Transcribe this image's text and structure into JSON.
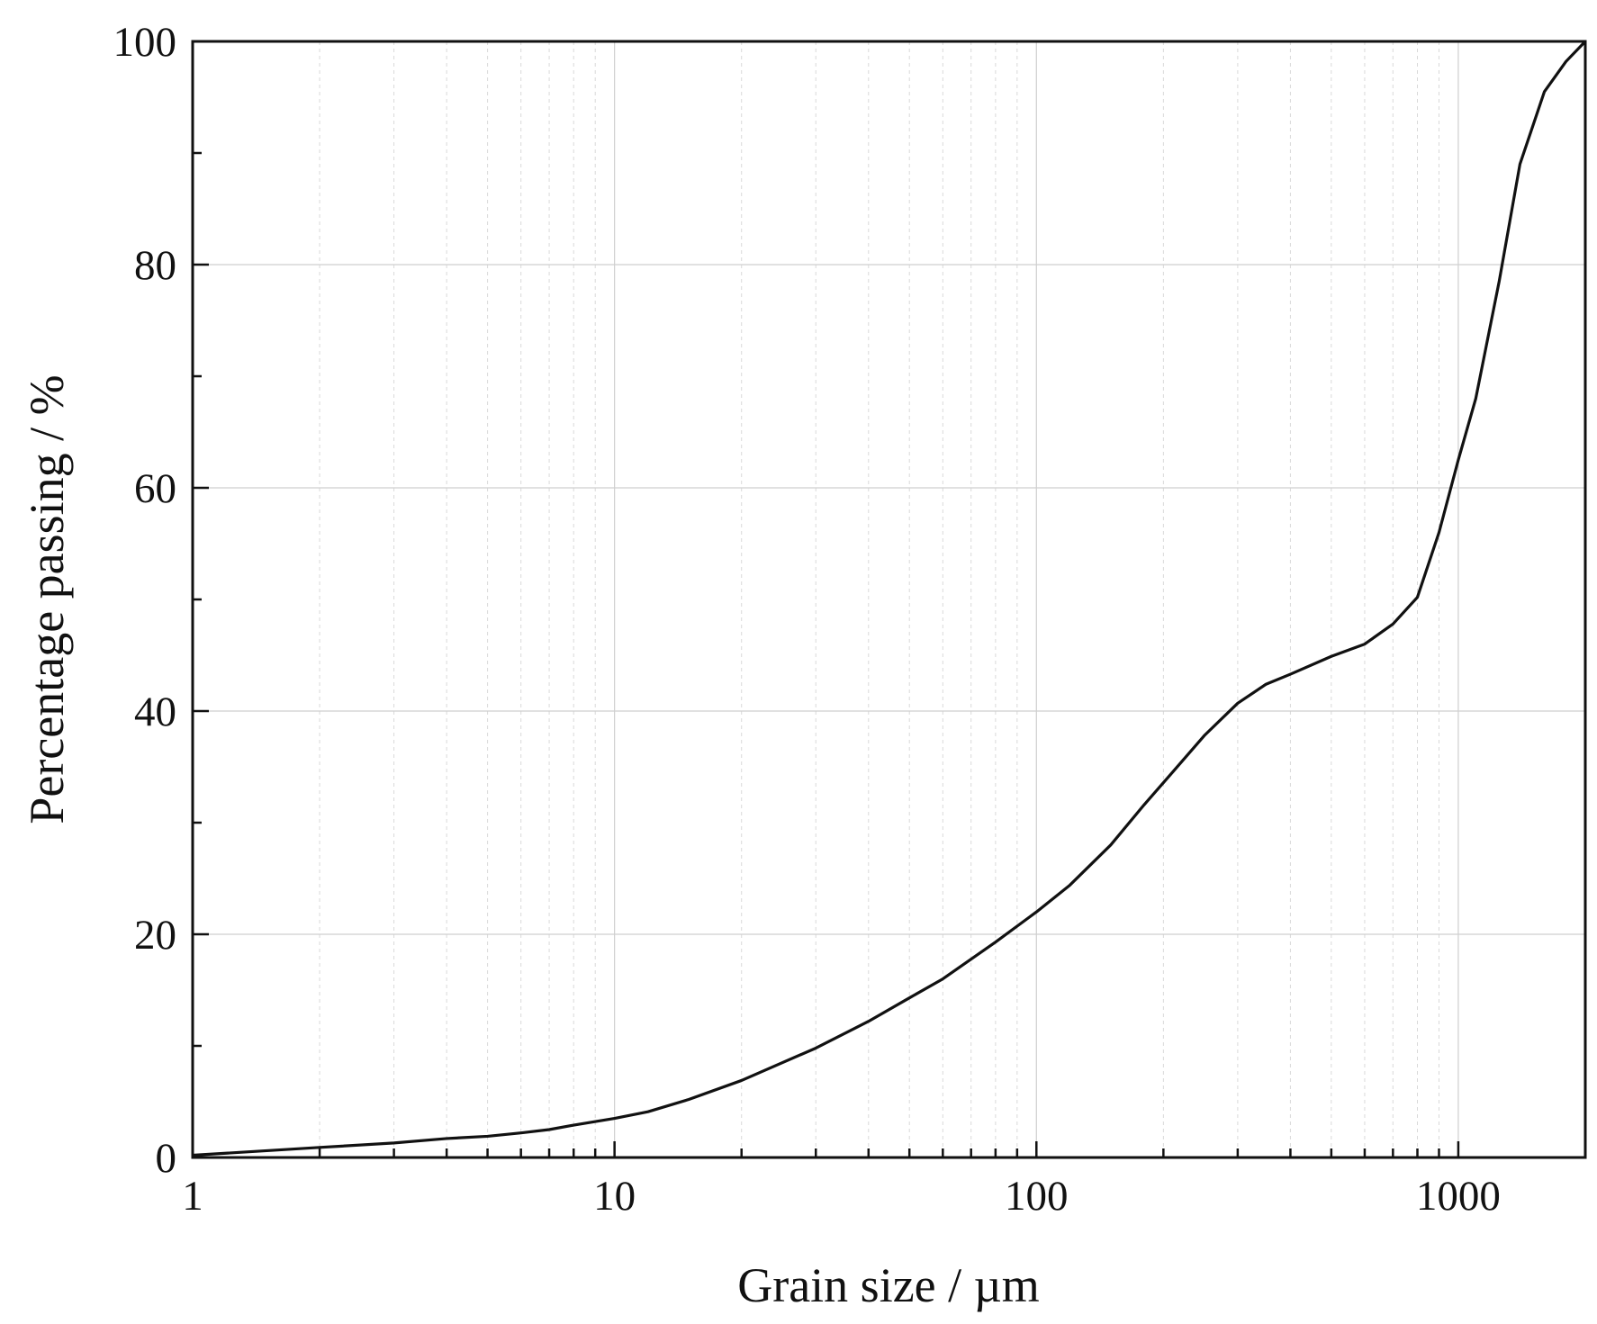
{
  "chart_data": {
    "type": "line",
    "title": "",
    "xlabel": "Grain size / µm",
    "ylabel": "Percentage passing / %",
    "xscale": "log",
    "xlim": [
      1,
      2000
    ],
    "ylim": [
      0,
      100
    ],
    "xticks": [
      1,
      10,
      100,
      1000
    ],
    "xtick_labels": [
      "1",
      "10",
      "100",
      "1000"
    ],
    "yticks": [
      0,
      20,
      40,
      60,
      80,
      100
    ],
    "ytick_labels": [
      "0",
      "20",
      "40",
      "60",
      "80",
      "100"
    ],
    "y_minor_ticks": [
      10,
      30,
      50,
      70,
      90
    ],
    "grid": true,
    "legend": "none",
    "series": [
      {
        "color": "#111111",
        "x": [
          1,
          2,
          3,
          4,
          5,
          6,
          7,
          8,
          10,
          12,
          15,
          20,
          30,
          40,
          50,
          60,
          80,
          100,
          120,
          150,
          180,
          210,
          250,
          300,
          350,
          400,
          500,
          600,
          700,
          800,
          900,
          1000,
          1100,
          1250,
          1400,
          1600,
          1800,
          2000
        ],
        "y": [
          0.2,
          0.9,
          1.3,
          1.7,
          1.9,
          2.2,
          2.5,
          2.9,
          3.5,
          4.1,
          5.2,
          6.9,
          9.8,
          12.2,
          14.3,
          16.0,
          19.3,
          22.0,
          24.4,
          28.0,
          31.6,
          34.5,
          37.8,
          40.7,
          42.4,
          43.3,
          44.9,
          46.0,
          47.8,
          50.2,
          56.0,
          62.5,
          68.0,
          78.5,
          89.0,
          95.5,
          98.2,
          100.0
        ]
      }
    ]
  }
}
